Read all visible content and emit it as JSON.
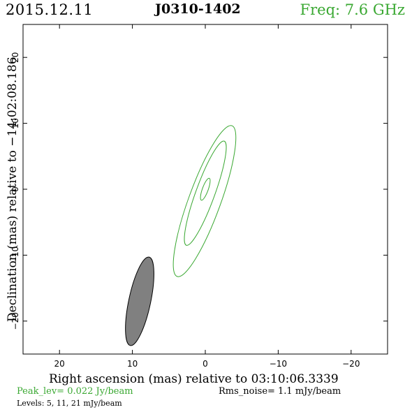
{
  "header": {
    "date": "2015.12.11",
    "source": "J0310-1402",
    "frequency": "Freq: 7.6 GHz"
  },
  "footer": {
    "peak": "Peak_lev=  0.022 Jy/beam",
    "rms": "Rms_noise=   1.1 mJy/beam",
    "levels": "Levels:   5,  11,  21 mJy/beam"
  },
  "colors": {
    "contour": "#3aa832",
    "beam_fill": "#808080",
    "axis": "#000000"
  },
  "chart_data": {
    "type": "contour",
    "title": "J0310-1402",
    "xlabel": "Right ascension (mas) relative to 03:10:06.3339",
    "ylabel": "Declination (mas) relative to −14:02:08.186",
    "xlim": [
      25,
      -25
    ],
    "ylim": [
      -25,
      25
    ],
    "x_ticks": [
      20,
      10,
      0,
      -10,
      -20
    ],
    "y_ticks": [
      20,
      10,
      0,
      -10,
      -20
    ],
    "x_tick_labels": [
      "20",
      "10",
      "0",
      "−10",
      "−20"
    ],
    "y_tick_labels": [
      "20",
      "10",
      "0",
      "−10",
      "−20"
    ],
    "levels_mJy_per_beam": [
      5,
      11,
      21
    ],
    "peak_Jy_per_beam": 0.022,
    "rms_noise_mJy_per_beam": 1.1,
    "contours": [
      {
        "level": 5,
        "center": [
          0.1,
          -1.8
        ],
        "semi_major": 11.0,
        "semi_minor": 2.2,
        "position_angle_deg": 20
      },
      {
        "level": 11,
        "center": [
          0.0,
          -0.6
        ],
        "semi_major": 7.6,
        "semi_minor": 1.3,
        "position_angle_deg": 20
      },
      {
        "level": 21,
        "center": [
          0.0,
          0.0
        ],
        "semi_major": 1.6,
        "semi_minor": 0.4,
        "position_angle_deg": 20
      }
    ],
    "beam": {
      "center": [
        9.0,
        -17.0
      ],
      "semi_major": 6.2,
      "semi_minor": 1.5,
      "position_angle_deg": 12
    }
  }
}
